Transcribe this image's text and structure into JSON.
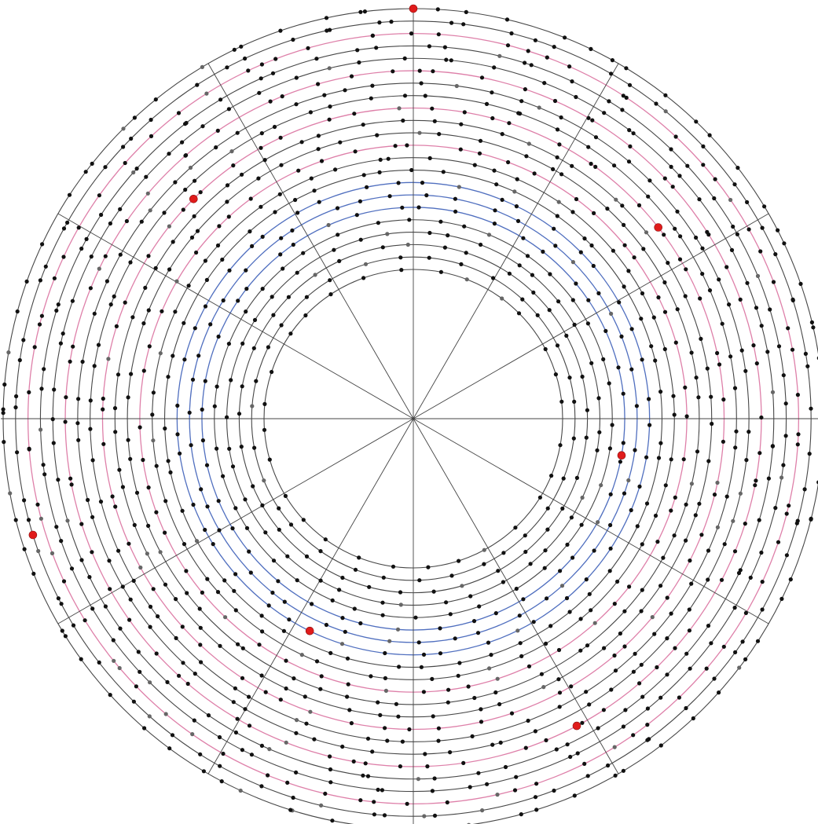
{
  "diagram": {
    "type": "polar-dot-grid",
    "sectors": 12,
    "rings": {
      "count": 22,
      "colors": {
        "outer": "#333333",
        "blue": "#3d5fb8",
        "pink": "#d86a9a",
        "inner": "#555555"
      }
    },
    "dots": {
      "regular_color": "#111111",
      "grey_color": "#666666",
      "highlight_color": "#e01b1b"
    },
    "ring_colors_sequence": [
      "outer",
      "outer",
      "pink",
      "outer",
      "outer",
      "pink",
      "outer",
      "outer",
      "pink",
      "outer",
      "outer",
      "pink",
      "outer",
      "outer",
      "blue",
      "blue",
      "blue",
      "outer",
      "outer",
      "outer",
      "outer",
      "outer"
    ],
    "highlight_points": [
      {
        "ring": 0,
        "angle_deg": 90
      },
      {
        "ring": 8,
        "angle_deg": 38
      },
      {
        "ring": 8,
        "angle_deg": 135
      },
      {
        "ring": 16,
        "angle_deg": -10
      },
      {
        "ring": 1,
        "angle_deg": 197
      },
      {
        "ring": 14,
        "angle_deg": 244
      },
      {
        "ring": 5,
        "angle_deg": 298
      }
    ]
  }
}
